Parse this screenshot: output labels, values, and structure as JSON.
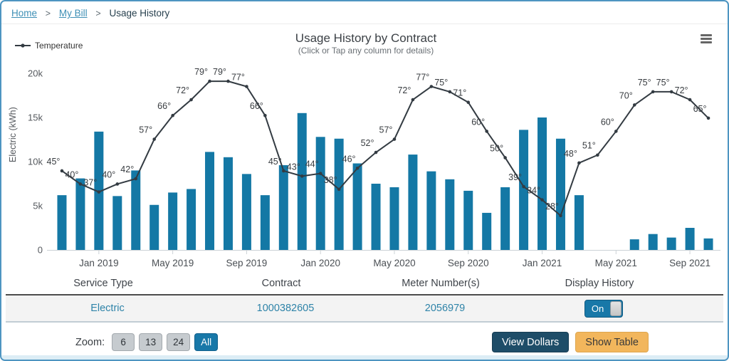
{
  "breadcrumb": {
    "separator": ">",
    "items": [
      {
        "label": "Home"
      },
      {
        "label": "My Bill"
      },
      {
        "label": "Usage History"
      }
    ]
  },
  "chart": {
    "legend_label": "Temperature"
  },
  "chart_data": {
    "type": "bar",
    "title": "Usage History by Contract",
    "subtitle": "(Click or Tap any column for details)",
    "ylabel": "Electric (kWh)",
    "ylim": [
      0,
      20000
    ],
    "y_ticks": [
      "0",
      "5k",
      "10k",
      "15k",
      "20k"
    ],
    "grid": false,
    "legend_position": "top-left",
    "x_tick_labels": [
      "Jan 2019",
      "May 2019",
      "Sep 2019",
      "Jan 2020",
      "May 2020",
      "Sep 2020",
      "Jan 2021",
      "May 2021",
      "Sep 2021"
    ],
    "categories": [
      "Nov 2018",
      "Dec 2018",
      "Jan 2019",
      "Feb 2019",
      "Mar 2019",
      "Apr 2019",
      "May 2019",
      "Jun 2019",
      "Jul 2019",
      "Aug 2019",
      "Sep 2019",
      "Oct 2019",
      "Nov 2019",
      "Dec 2019",
      "Jan 2020",
      "Feb 2020",
      "Mar 2020",
      "Apr 2020",
      "May 2020",
      "Jun 2020",
      "Jul 2020",
      "Aug 2020",
      "Sep 2020",
      "Oct 2020",
      "Nov 2020",
      "Dec 2020",
      "Jan 2021",
      "Feb 2021",
      "Mar 2021",
      "Apr 2021",
      "May 2021",
      "Jun 2021",
      "Jul 2021",
      "Aug 2021",
      "Sep 2021",
      "Oct 2021"
    ],
    "series": [
      {
        "name": "Electric (kWh)",
        "type": "bar",
        "values": [
          6200,
          8100,
          13400,
          6100,
          9000,
          5100,
          6500,
          6900,
          11100,
          10500,
          8600,
          6200,
          9600,
          15500,
          12800,
          12600,
          9800,
          7500,
          7100,
          10800,
          8900,
          8000,
          6700,
          4200,
          7100,
          13600,
          15000,
          12600,
          6200,
          null,
          null,
          1200,
          1800,
          1400,
          2500,
          1300
        ]
      },
      {
        "name": "Temperature",
        "type": "line",
        "unit": "°",
        "axis_range": [
          15,
          82
        ],
        "values": [
          45,
          40,
          37,
          40,
          42,
          57,
          66,
          72,
          79,
          79,
          77,
          66,
          45,
          43,
          44,
          38,
          46,
          52,
          57,
          72,
          77,
          75,
          71,
          60,
          50,
          39,
          34,
          28,
          48,
          51,
          60,
          70,
          75,
          75,
          72,
          65
        ]
      }
    ]
  },
  "table": {
    "headers": [
      "Service Type",
      "Contract",
      "Meter Number(s)",
      "Display History"
    ],
    "row": {
      "service_type": "Electric",
      "contract": "1000382605",
      "meter": "2056979",
      "display_history": "On"
    }
  },
  "controls": {
    "zoom_label": "Zoom:",
    "zoom_options": [
      "6",
      "13",
      "24",
      "All"
    ],
    "zoom_active": "All",
    "view_dollars": "View Dollars",
    "show_table": "Show Table"
  },
  "colors": {
    "bar": "#1478A5",
    "line": "#333B42",
    "axis_text": "#55595E",
    "temp_label": "#383C40",
    "axis_line": "#CCD2D6",
    "accent": "#1878A8",
    "link": "#3E8FB5",
    "value_text": "#2E83A8",
    "view_dollars_bg": "#1E4D68",
    "show_table_bg": "#F2B65C",
    "page_border": "#4E95C1"
  }
}
